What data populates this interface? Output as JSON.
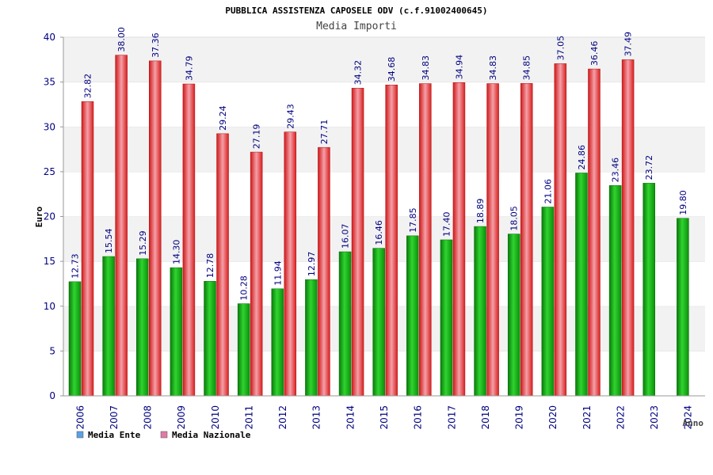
{
  "chart_data": {
    "type": "bar",
    "title": "PUBBLICA ASSISTENZA CAPOSELE ODV (c.f.91002400645)",
    "subtitle": "Media Importi",
    "xlabel": "Anno",
    "ylabel": "Euro",
    "ylim": [
      0,
      40
    ],
    "yticks": [
      0,
      5,
      10,
      15,
      20,
      25,
      30,
      35,
      40
    ],
    "grid": "horizontal bands",
    "legend_position": "bottom-left",
    "categories": [
      "2006",
      "2007",
      "2008",
      "2009",
      "2010",
      "2011",
      "2012",
      "2013",
      "2014",
      "2015",
      "2016",
      "2017",
      "2018",
      "2019",
      "2020",
      "2021",
      "2022",
      "2023",
      "2024"
    ],
    "series": [
      {
        "name": "Media Ente",
        "color": "#1fa81f",
        "legend_color": "#5aa0e6",
        "values": [
          12.73,
          15.54,
          15.29,
          14.3,
          12.78,
          10.28,
          11.94,
          12.97,
          16.07,
          16.46,
          17.85,
          17.4,
          18.89,
          18.05,
          21.06,
          24.86,
          23.46,
          23.72,
          19.8
        ],
        "labels": [
          "12.73",
          "15.54",
          "15.29",
          "14.30",
          "12.78",
          "10.28",
          "11.94",
          "12.97",
          "16.07",
          "16.46",
          "17.85",
          "17.40",
          "18.89",
          "18.05",
          "21.06",
          "24.86",
          "23.46",
          "23.72",
          "19.80"
        ]
      },
      {
        "name": "Media Nazionale",
        "color": "#e83030",
        "legend_color": "#e07aa8",
        "values": [
          32.82,
          38.0,
          37.36,
          34.79,
          29.24,
          27.19,
          29.43,
          27.71,
          34.32,
          34.68,
          34.83,
          34.94,
          34.83,
          34.85,
          37.05,
          36.46,
          37.49,
          null,
          null
        ],
        "labels": [
          "32.82",
          "38.00",
          "37.36",
          "34.79",
          "29.24",
          "27.19",
          "29.43",
          "27.71",
          "34.32",
          "34.68",
          "34.83",
          "34.94",
          "34.83",
          "34.85",
          "37.05",
          "36.46",
          "37.49",
          null,
          null
        ]
      }
    ]
  }
}
